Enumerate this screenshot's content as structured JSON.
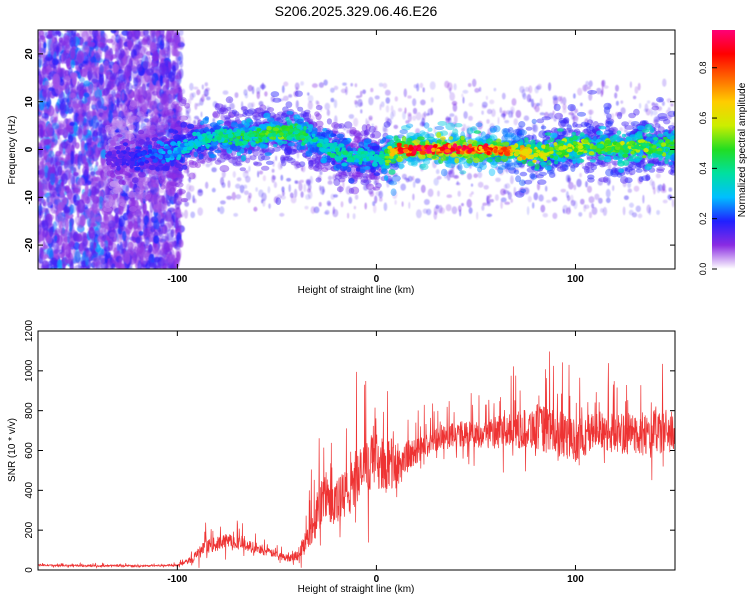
{
  "title": "S206.2025.329.06.46.E26",
  "chart_data": [
    {
      "type": "heatmap",
      "xlabel": "Height of straight line (km)",
      "ylabel": "Frequency (Hz)",
      "xlim": [
        -170,
        150
      ],
      "ylim": [
        -25,
        25
      ],
      "x_ticks": [
        -100,
        0,
        100
      ],
      "y_ticks": [
        -20,
        -10,
        0,
        10,
        20
      ],
      "colorbar": {
        "label": "Normalized spectral amplitude",
        "range": [
          0,
          0.95
        ],
        "ticks": [
          0.0,
          0.2,
          0.4,
          0.6,
          0.8
        ],
        "colors": [
          "#ffffff",
          "#8a2be2",
          "#2020ff",
          "#00bfff",
          "#00e0a0",
          "#22dd22",
          "#ccee00",
          "#ffcc00",
          "#ff6600",
          "#ff0000",
          "#ff0077"
        ]
      },
      "ridge": {
        "x": [
          -130,
          -120,
          -110,
          -100,
          -90,
          -80,
          -70,
          -60,
          -50,
          -45,
          -40,
          -35,
          -30,
          -25,
          -20,
          -15,
          -10,
          -5,
          0,
          5,
          10,
          20,
          30,
          40,
          50,
          60,
          70,
          80,
          90,
          100,
          110,
          120,
          130,
          140,
          150
        ],
        "freq": [
          -2,
          -1.5,
          -1,
          0,
          1.5,
          3,
          2.5,
          3,
          3.5,
          4,
          3.5,
          2.5,
          1.5,
          0.5,
          -0.5,
          -1.5,
          -2,
          -1,
          -2,
          -1.5,
          0,
          0,
          0,
          0,
          0,
          0,
          -0.5,
          -1,
          0,
          0.5,
          0.5,
          0.5,
          0.5,
          0.5,
          0.5
        ],
        "amplitude": [
          0.15,
          0.2,
          0.25,
          0.3,
          0.35,
          0.4,
          0.45,
          0.45,
          0.5,
          0.5,
          0.45,
          0.45,
          0.4,
          0.4,
          0.4,
          0.4,
          0.35,
          0.4,
          0.35,
          0.45,
          0.8,
          0.9,
          0.9,
          0.9,
          0.85,
          0.8,
          0.7,
          0.6,
          0.55,
          0.55,
          0.5,
          0.55,
          0.55,
          0.5,
          0.5
        ]
      }
    },
    {
      "type": "line",
      "xlabel": "Height of straight line (km)",
      "ylabel": "SNR (10 * v/v)",
      "xlim": [
        -170,
        150
      ],
      "ylim": [
        0,
        1200
      ],
      "x_ticks": [
        -100,
        0,
        100
      ],
      "y_ticks": [
        0,
        200,
        400,
        600,
        800,
        1000,
        1200
      ],
      "color": "#ee3333",
      "series": [
        {
          "x": [
            -170,
            -160,
            -150,
            -140,
            -130,
            -120,
            -110,
            -100,
            -95,
            -90,
            -85,
            -80,
            -75,
            -70,
            -65,
            -60,
            -55,
            -50,
            -45,
            -40,
            -35,
            -30,
            -25,
            -20,
            -15,
            -10,
            -5,
            0,
            5,
            10,
            15,
            20,
            25,
            30,
            40,
            50,
            60,
            70,
            80,
            90,
            100,
            110,
            120,
            130,
            140,
            150
          ],
          "values": [
            25,
            22,
            22,
            20,
            22,
            20,
            22,
            25,
            40,
            80,
            120,
            130,
            150,
            140,
            120,
            110,
            90,
            80,
            60,
            70,
            150,
            280,
            380,
            330,
            380,
            450,
            520,
            550,
            520,
            530,
            560,
            600,
            620,
            660,
            680,
            680,
            690,
            700,
            720,
            690,
            650,
            700,
            690,
            680,
            690,
            700
          ],
          "spread": [
            10,
            10,
            10,
            10,
            10,
            10,
            10,
            12,
            30,
            60,
            80,
            80,
            80,
            80,
            70,
            60,
            50,
            40,
            40,
            60,
            150,
            250,
            300,
            280,
            300,
            320,
            300,
            300,
            300,
            300,
            200,
            150,
            140,
            140,
            150,
            160,
            180,
            200,
            260,
            260,
            240,
            230,
            230,
            240,
            250,
            260
          ]
        }
      ]
    }
  ]
}
